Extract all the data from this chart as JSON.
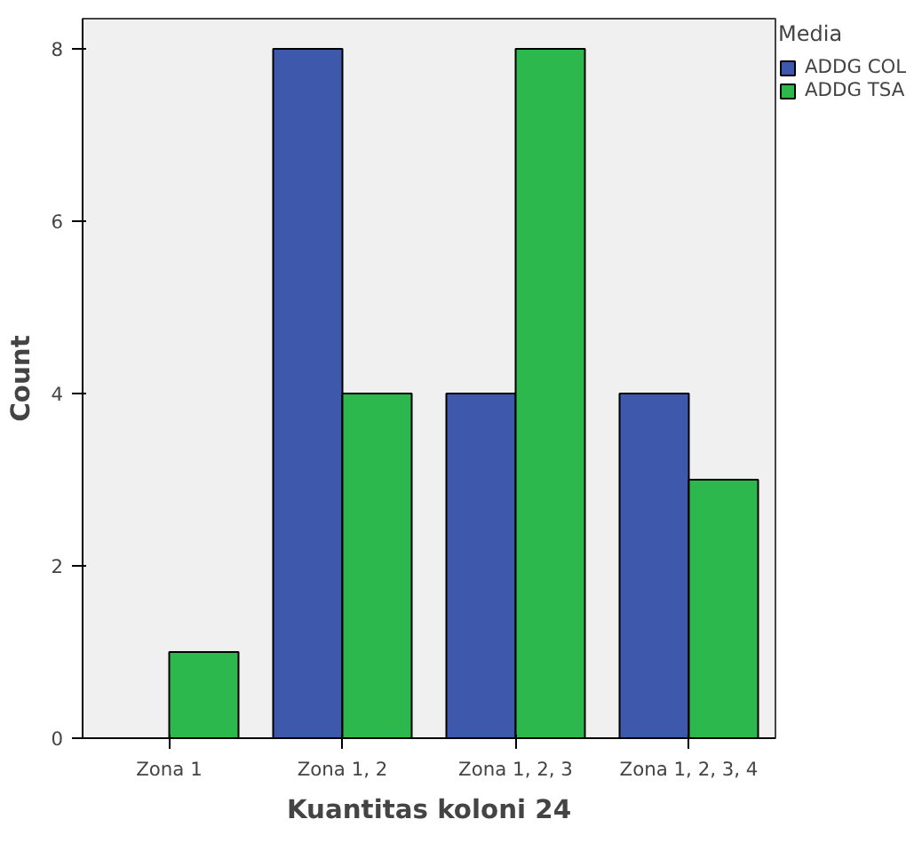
{
  "chart_data": {
    "type": "bar",
    "xlabel": "Kuantitas koloni 24",
    "ylabel": "Count",
    "legend_title": "Media",
    "legend": "right",
    "categories": [
      "Zona 1",
      "Zona 1, 2",
      "Zona 1, 2, 3",
      "Zona 1, 2, 3, 4"
    ],
    "series": [
      {
        "name": "ADDG COL",
        "color": "#3e58ac",
        "values": [
          null,
          8,
          4,
          4
        ]
      },
      {
        "name": "ADDG TSA",
        "color": "#2db84d",
        "values": [
          1,
          4,
          8,
          3
        ]
      }
    ],
    "ylim": [
      0,
      8.35
    ],
    "yticks": [
      0,
      2,
      4,
      6,
      8
    ],
    "grid": false
  }
}
